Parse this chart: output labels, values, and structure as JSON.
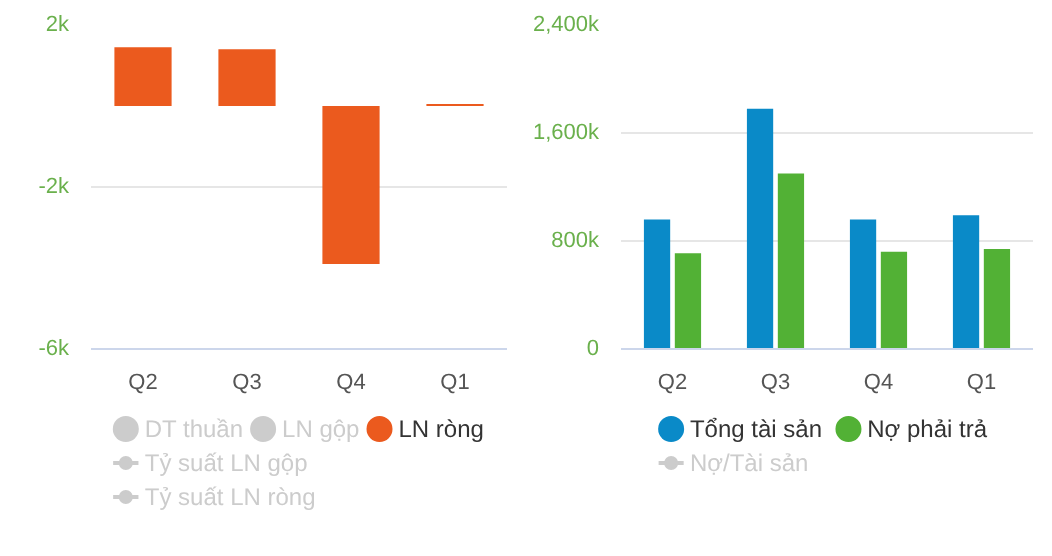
{
  "chart_data": [
    {
      "type": "bar",
      "categories": [
        "Q2",
        "Q3",
        "Q4",
        "Q1"
      ],
      "ylim": [
        -6000,
        2000
      ],
      "yticks": [
        {
          "value": 2000,
          "label": "2k"
        },
        {
          "value": -2000,
          "label": "-2k"
        },
        {
          "value": -6000,
          "label": "-6k"
        }
      ],
      "grid": "y",
      "legend": "bottom",
      "series": [
        {
          "name": "DT thuần",
          "color": "#cccccc",
          "values": [
            null,
            null,
            null,
            null
          ]
        },
        {
          "name": "LN gộp",
          "color": "#cccccc",
          "values": [
            null,
            null,
            null,
            null
          ]
        },
        {
          "name": "LN ròng",
          "color": "#eb5a1e",
          "values": [
            1450,
            1400,
            -3900,
            50
          ]
        },
        {
          "name": "Tỷ suất LN gộp",
          "type": "line",
          "color": "#cccccc",
          "values": [
            null,
            null,
            null,
            null
          ]
        },
        {
          "name": "Tỷ suất LN ròng",
          "type": "line",
          "color": "#cccccc",
          "values": [
            null,
            null,
            null,
            null
          ]
        }
      ]
    },
    {
      "type": "bar",
      "categories": [
        "Q2",
        "Q3",
        "Q4",
        "Q1"
      ],
      "ylim": [
        0,
        2400000
      ],
      "yticks": [
        {
          "value": 0,
          "label": "0"
        },
        {
          "value": 800000,
          "label": "800k"
        },
        {
          "value": 1600000,
          "label": "1,600k"
        },
        {
          "value": 2400000,
          "label": "2,400k"
        }
      ],
      "grid": "y",
      "legend": "bottom",
      "series": [
        {
          "name": "Tổng tài sản",
          "color": "#0a8ac8",
          "values": [
            960000,
            1780000,
            960000,
            990000
          ]
        },
        {
          "name": "Nợ phải trả",
          "color": "#52b135",
          "values": [
            710000,
            1300000,
            720000,
            740000
          ]
        },
        {
          "name": "Nợ/Tài sản",
          "type": "line",
          "color": "#cccccc",
          "values": [
            null,
            null,
            null,
            null
          ]
        }
      ]
    }
  ]
}
